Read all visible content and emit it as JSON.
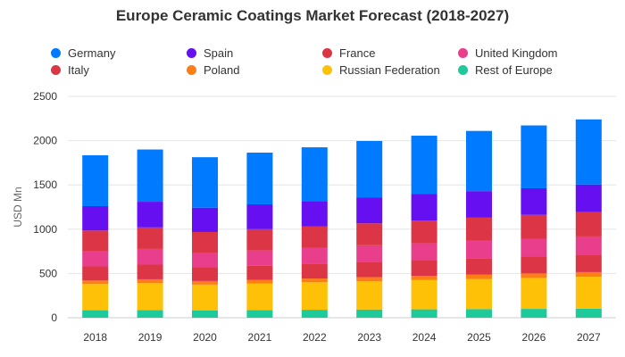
{
  "chart_data": {
    "type": "bar",
    "stacked": true,
    "title": "Europe Ceramic Coatings Market Forecast (2018-2027)",
    "xlabel": "",
    "ylabel": "USD Mn",
    "ylim": [
      0,
      2500
    ],
    "yticks": [
      0,
      500,
      1000,
      1500,
      2000,
      2500
    ],
    "grid": true,
    "legend_position": "top",
    "categories": [
      "2018",
      "2019",
      "2020",
      "2021",
      "2022",
      "2023",
      "2024",
      "2025",
      "2026",
      "2027"
    ],
    "series": [
      {
        "name": "Rest of Europe",
        "color": "#1ec99a",
        "values": [
          85,
          87,
          84,
          87,
          90,
          93,
          95,
          98,
          100,
          103
        ]
      },
      {
        "name": "Russian Federation",
        "color": "#ffc107",
        "values": [
          295,
          305,
          290,
          298,
          310,
          320,
          330,
          340,
          350,
          360
        ]
      },
      {
        "name": "Poland",
        "color": "#fd7e14",
        "values": [
          40,
          42,
          40,
          41,
          43,
          45,
          46,
          48,
          50,
          52
        ]
      },
      {
        "name": "Italy",
        "color": "#dc3545",
        "values": [
          160,
          166,
          156,
          162,
          170,
          175,
          180,
          186,
          190,
          195
        ]
      },
      {
        "name": "United Kingdom",
        "color": "#e83e8c",
        "values": [
          170,
          177,
          166,
          172,
          178,
          185,
          190,
          196,
          202,
          208
        ]
      },
      {
        "name": "France",
        "color": "#dc3545",
        "values": [
          235,
          243,
          232,
          240,
          242,
          248,
          255,
          262,
          270,
          277
        ]
      },
      {
        "name": "Spain",
        "color": "#6610f2",
        "values": [
          275,
          290,
          275,
          280,
          282,
          290,
          300,
          300,
          300,
          310
        ]
      },
      {
        "name": "Germany",
        "color": "#007bff",
        "values": [
          575,
          590,
          570,
          585,
          610,
          640,
          660,
          680,
          710,
          735
        ]
      }
    ],
    "legend_order": [
      "Germany",
      "Spain",
      "France",
      "United Kingdom",
      "Italy",
      "Poland",
      "Russian Federation",
      "Rest of Europe"
    ]
  }
}
